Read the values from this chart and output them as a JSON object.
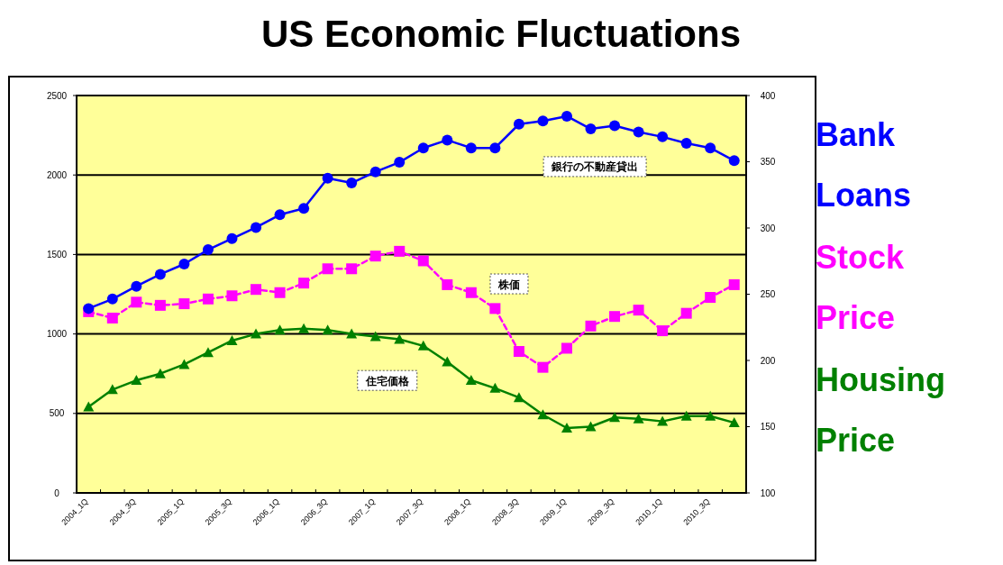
{
  "chart_data": {
    "type": "line",
    "title": "US Economic Fluctuations",
    "categories": [
      "2004_1Q",
      null,
      "2004_3Q",
      null,
      "2005_1Q",
      null,
      "2005_3Q",
      null,
      "2006_1Q",
      null,
      "2006_3Q",
      null,
      "2007_1Q",
      null,
      "2007_3Q",
      null,
      "2008_1Q",
      null,
      "2008_3Q",
      null,
      "2009_1Q",
      null,
      "2009_3Q",
      null,
      "2010_1Q",
      null,
      "2010_3Q",
      null
    ],
    "series": [
      {
        "name": "銀行の不動産貸出",
        "color": "#0000ff",
        "marker": "circle",
        "values": [
          1160,
          1220,
          1300,
          1375,
          1440,
          1530,
          1600,
          1670,
          1750,
          1790,
          1980,
          1950,
          2020,
          2080,
          2170,
          2220,
          2170,
          2170,
          2320,
          2340,
          2370,
          2290,
          2310,
          2270,
          2240,
          2200,
          2170,
          2090
        ]
      },
      {
        "name": "株価",
        "color": "#ff00ff",
        "marker": "square",
        "line_style": "dashed",
        "values": [
          1140,
          1100,
          1200,
          1180,
          1190,
          1220,
          1240,
          1280,
          1260,
          1320,
          1410,
          1410,
          1490,
          1520,
          1460,
          1310,
          1260,
          1160,
          890,
          790,
          910,
          1050,
          1110,
          1150,
          1020,
          1130,
          1230,
          1310
        ]
      },
      {
        "name": "住宅価格",
        "color": "#008000",
        "marker": "triangle",
        "axis": "y2",
        "values": [
          165,
          178,
          185,
          190,
          197,
          206,
          215,
          220,
          223,
          224,
          223,
          220,
          218,
          216,
          211,
          199,
          185,
          179,
          172,
          159,
          149,
          150,
          157,
          156,
          154,
          158,
          158,
          153
        ]
      }
    ],
    "ylim": [
      0,
      2500
    ],
    "yticks": [
      0,
      500,
      1000,
      1500,
      2000,
      2500
    ],
    "y2lim": [
      100,
      400
    ],
    "y2ticks": [
      100,
      150,
      200,
      250,
      300,
      350,
      400
    ],
    "grid": "y",
    "annotations": [
      "Bank Loans",
      "Stock Price",
      "Housing Price"
    ]
  }
}
